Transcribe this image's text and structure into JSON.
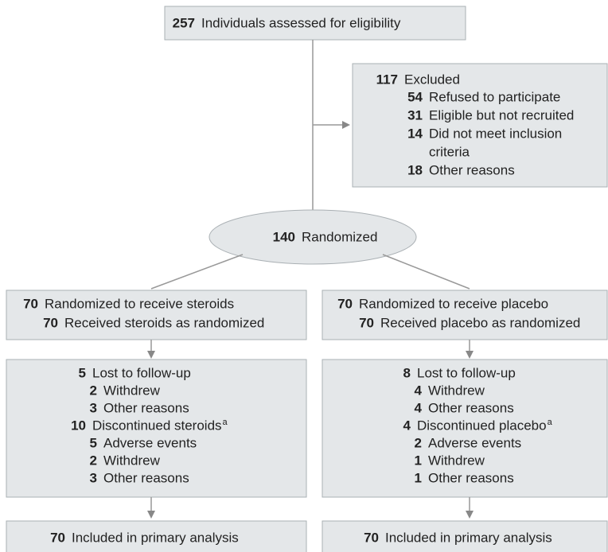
{
  "enrollment": {
    "n": 257,
    "text": "Individuals assessed for eligibility"
  },
  "excluded": {
    "n": 117,
    "text": "Excluded",
    "reasons": [
      {
        "n": 54,
        "text": "Refused to participate"
      },
      {
        "n": 31,
        "text": "Eligible but not recruited"
      },
      {
        "n": 14,
        "lines": [
          "Did not meet inclusion",
          "criteria"
        ]
      },
      {
        "n": 18,
        "text": "Other reasons"
      }
    ]
  },
  "randomized": {
    "n": 140,
    "text": "Randomized"
  },
  "arms": [
    {
      "allocation": {
        "n": 70,
        "text": "Randomized to receive steroids"
      },
      "received": {
        "n": 70,
        "text": "Received steroids as randomized"
      },
      "lost": {
        "n": 5,
        "text": "Lost to follow-up",
        "reasons": [
          {
            "n": 2,
            "text": "Withdrew"
          },
          {
            "n": 3,
            "text": "Other reasons"
          }
        ]
      },
      "discontinued": {
        "n": 10,
        "text": "Discontinued steroids",
        "note": "a",
        "reasons": [
          {
            "n": 5,
            "text": "Adverse events"
          },
          {
            "n": 2,
            "text": "Withdrew"
          },
          {
            "n": 3,
            "text": "Other reasons"
          }
        ]
      },
      "analysis": {
        "n": 70,
        "text": "Included in primary analysis"
      }
    },
    {
      "allocation": {
        "n": 70,
        "text": "Randomized to receive placebo"
      },
      "received": {
        "n": 70,
        "text": "Received placebo as randomized"
      },
      "lost": {
        "n": 8,
        "text": "Lost to follow-up",
        "reasons": [
          {
            "n": 4,
            "text": "Withdrew"
          },
          {
            "n": 4,
            "text": "Other reasons"
          }
        ]
      },
      "discontinued": {
        "n": 4,
        "text": "Discontinued placebo",
        "note": "a",
        "reasons": [
          {
            "n": 2,
            "text": "Adverse events"
          },
          {
            "n": 1,
            "text": "Withdrew"
          },
          {
            "n": 1,
            "text": "Other reasons"
          }
        ]
      },
      "analysis": {
        "n": 70,
        "text": "Included in primary analysis"
      }
    }
  ]
}
